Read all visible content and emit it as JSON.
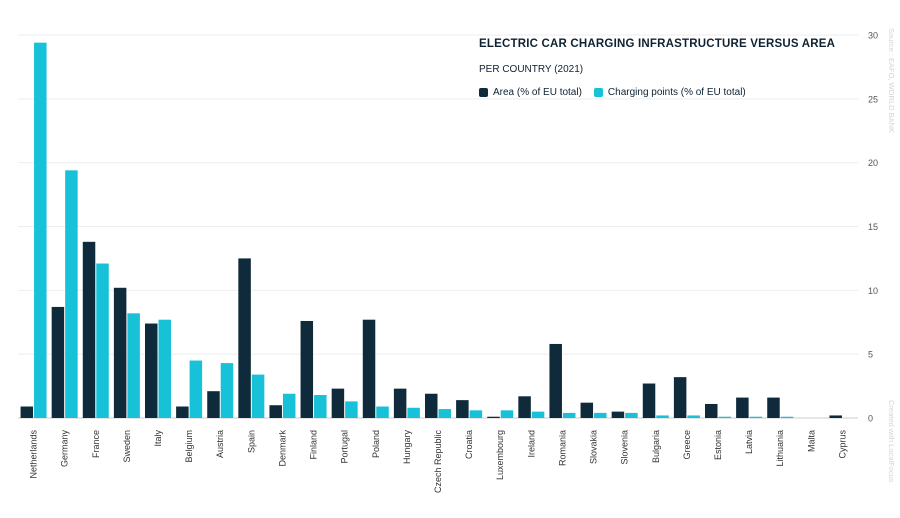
{
  "chart_data": {
    "type": "bar",
    "title": "ELECTRIC CAR CHARGING INFRASTRUCTURE VERSUS AREA",
    "subtitle": "PER COUNTRY (2021)",
    "xlabel": "",
    "ylabel": "",
    "ylim": [
      0,
      30
    ],
    "yticks": [
      0,
      5,
      10,
      15,
      20,
      25,
      30
    ],
    "y_axis_side": "right",
    "grid": true,
    "legend_position": "top-right",
    "categories": [
      "Netherlands",
      "Germany",
      "France",
      "Sweden",
      "Italy",
      "Belgium",
      "Austria",
      "Spain",
      "Denmark",
      "Finland",
      "Portugal",
      "Poland",
      "Hungary",
      "Czech Republic",
      "Croatia",
      "Luxembourg",
      "Ireland",
      "Romania",
      "Slovakia",
      "Slovenia",
      "Bulgaria",
      "Greece",
      "Estonia",
      "Latvia",
      "Lithuania",
      "Malta",
      "Cyprus"
    ],
    "series": [
      {
        "name": "Area (% of EU total)",
        "color": "#0f2a3a",
        "values": [
          0.9,
          8.7,
          13.8,
          10.2,
          7.4,
          0.9,
          2.1,
          12.5,
          1.0,
          7.6,
          2.3,
          7.7,
          2.3,
          1.9,
          1.4,
          0.1,
          1.7,
          5.8,
          1.2,
          0.5,
          2.7,
          3.2,
          1.1,
          1.6,
          1.6,
          0.0,
          0.2
        ]
      },
      {
        "name": "Charging points (% of EU total)",
        "color": "#17c1d8",
        "values": [
          29.4,
          19.4,
          12.1,
          8.2,
          7.7,
          4.5,
          4.3,
          3.4,
          1.9,
          1.8,
          1.3,
          0.9,
          0.8,
          0.7,
          0.6,
          0.6,
          0.5,
          0.4,
          0.4,
          0.4,
          0.2,
          0.2,
          0.1,
          0.1,
          0.1,
          0.0,
          0.0
        ]
      }
    ]
  },
  "source_note": "Source : EAFO, WORLD BANK",
  "credit_note": "Created with LocalFocus"
}
